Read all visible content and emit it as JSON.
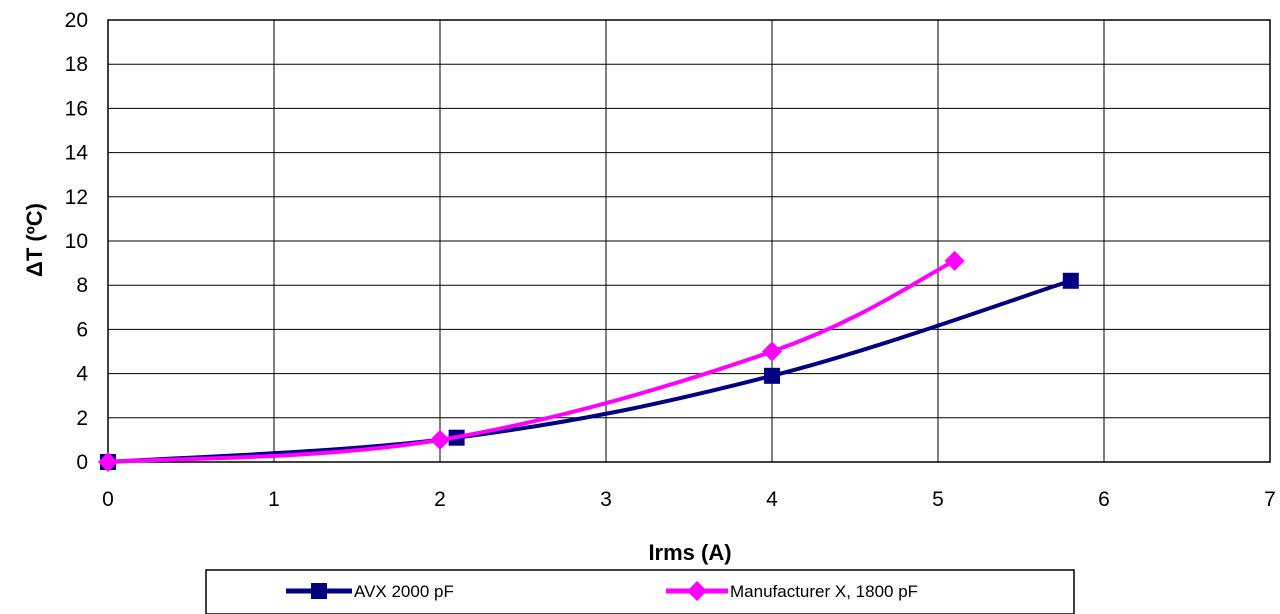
{
  "chart_data": {
    "type": "line",
    "title": "",
    "xlabel": "Irms (A)",
    "ylabel": "ΔT (ºC)",
    "xlim": [
      0,
      7
    ],
    "ylim": [
      0,
      20
    ],
    "x_ticks": [
      "0",
      "1",
      "2",
      "3",
      "4",
      "5",
      "6",
      "7"
    ],
    "y_ticks": [
      "0",
      "2",
      "4",
      "6",
      "8",
      "10",
      "12",
      "14",
      "16",
      "18",
      "20"
    ],
    "grid": true,
    "legend_position": "bottom",
    "series": [
      {
        "name": "AVX 2000 pF",
        "color": "#000080",
        "marker": "square",
        "x": [
          0,
          2.1,
          4.0,
          5.8
        ],
        "y": [
          0,
          1.1,
          3.9,
          8.2
        ]
      },
      {
        "name": "Manufacturer X, 1800 pF",
        "color": "#ff00ff",
        "marker": "diamond",
        "x": [
          0,
          2.0,
          4.0,
          5.1
        ],
        "y": [
          0,
          1.0,
          5.0,
          9.1
        ]
      }
    ]
  }
}
